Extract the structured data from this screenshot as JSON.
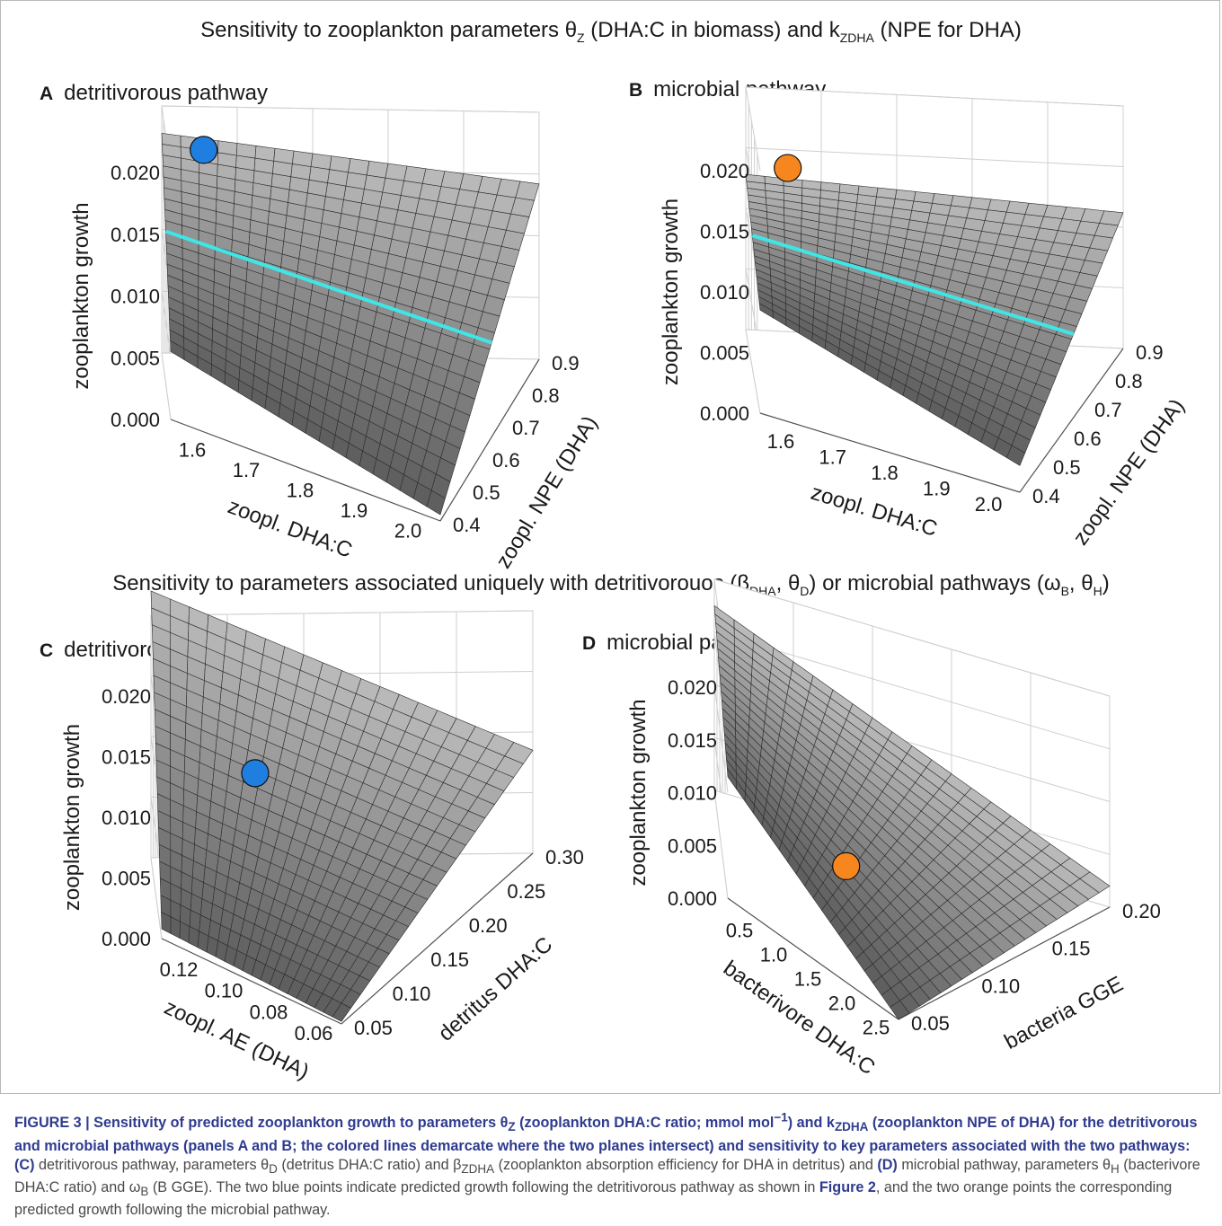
{
  "section_titles": {
    "top": "Sensitivity to zooplankton parameters θ",
    "top_sub1": "Z",
    "top_mid": " (DHA:C in biomass) and k",
    "top_sub2": "ZDHA",
    "top_end": " (NPE for DHA)",
    "bottom_a": "Sensitivity to parameters associated uniquely with detritivorouos (β",
    "bottom_sub1": "DHA",
    "bottom_b": ", θ",
    "bottom_sub2": "D",
    "bottom_c": ") or microbial pathways (ω",
    "bottom_sub3": "B",
    "bottom_d": ", θ",
    "bottom_sub4": "H",
    "bottom_e": ")"
  },
  "colors": {
    "surface": "#7a7a7a",
    "surface_light": "#bdbdbd",
    "mesh": "#2b2b2b",
    "grid": "#cfcfcf",
    "blue_point": "#1f7fe0",
    "orange_point": "#f7861e",
    "cyan_line": "#3fe6e6"
  },
  "chart_data": [
    {
      "panel": "A",
      "title": "detritivorous pathway",
      "type": "surface3d",
      "xlabel": "zoopl. DHA:C",
      "ylabel": "zoopl. NPE (DHA)",
      "zlabel": "zooplankton growth",
      "x_ticks": [
        "1.6",
        "1.7",
        "1.8",
        "1.9",
        "2.0"
      ],
      "y_ticks": [
        "0.4",
        "0.5",
        "0.6",
        "0.7",
        "0.8",
        "0.9"
      ],
      "z_ticks": [
        "0.000",
        "0.005",
        "0.010",
        "0.015",
        "0.020"
      ],
      "xlim": [
        1.55,
        2.0
      ],
      "ylim": [
        0.4,
        0.9
      ],
      "zlim": [
        0,
        0.02
      ],
      "surface_corners": {
        "x_min_y_min": 0.0055,
        "x_max_y_min": 0.0005,
        "x_min_y_max": 0.0178,
        "x_max_y_max": 0.0142
      },
      "point": {
        "color": "blue",
        "x": 1.6,
        "y": 0.9,
        "z": 0.0165
      },
      "intersection_line": true
    },
    {
      "panel": "B",
      "title": "microbial pathway",
      "type": "surface3d",
      "xlabel": "zoopl. DHA:C",
      "ylabel": "zoopl. NPE (DHA)",
      "zlabel": "zooplankton growth",
      "x_ticks": [
        "1.6",
        "1.7",
        "1.8",
        "1.9",
        "2.0"
      ],
      "y_ticks": [
        "0.4",
        "0.5",
        "0.6",
        "0.7",
        "0.8",
        "0.9"
      ],
      "z_ticks": [
        "0.000",
        "0.005",
        "0.010",
        "0.015",
        "0.020"
      ],
      "xlim": [
        1.55,
        2.0
      ],
      "ylim": [
        0.4,
        0.9
      ],
      "zlim": [
        0,
        0.02
      ],
      "surface_corners": {
        "x_min_y_min": 0.0085,
        "x_max_y_min": 0.0022,
        "x_min_y_max": 0.0128,
        "x_max_y_max": 0.0112
      },
      "point": {
        "color": "orange",
        "x": 1.6,
        "y": 0.9,
        "z": 0.0135
      },
      "intersection_line": true
    },
    {
      "panel": "C",
      "title": "detritivorous pathway",
      "type": "surface3d",
      "xlabel": "zoopl. AE (DHA)",
      "ylabel": "detritus DHA:C",
      "zlabel": "zooplankton growth",
      "x_ticks": [
        "0.12",
        "0.10",
        "0.08",
        "0.06"
      ],
      "y_ticks": [
        "0.05",
        "0.10",
        "0.15",
        "0.20",
        "0.25",
        "0.30"
      ],
      "z_ticks": [
        "0.000",
        "0.005",
        "0.010",
        "0.015",
        "0.020"
      ],
      "xlim": [
        0.13,
        0.05
      ],
      "ylim": [
        0.05,
        0.3
      ],
      "zlim": [
        0,
        0.02
      ],
      "surface_corners": {
        "x_max_y_min": 0.0008,
        "x_min_y_min": 0.0002,
        "x_max_y_max": 0.022,
        "x_min_y_max": 0.0085
      },
      "point": {
        "color": "blue",
        "x": 0.1,
        "y": 0.15,
        "z": 0.0125
      }
    },
    {
      "panel": "D",
      "title": "microbial pathway",
      "type": "surface3d",
      "xlabel": "bacterivore DHA:C",
      "ylabel": "bacteria GGE",
      "zlabel": "zooplankton growth",
      "x_ticks": [
        "0.5",
        "1.0",
        "1.5",
        "2.0",
        "2.5"
      ],
      "y_ticks": [
        "0.05",
        "0.10",
        "0.15",
        "0.20"
      ],
      "z_ticks": [
        "0.000",
        "0.005",
        "0.010",
        "0.015",
        "0.020"
      ],
      "xlim": [
        0.5,
        2.5
      ],
      "ylim": [
        0.05,
        0.2
      ],
      "zlim": [
        0,
        0.02
      ],
      "surface_corners": {
        "x_min_y_max": 0.0115,
        "x_min_y_min": 0.0,
        "x_max_y_max": 0.0175,
        "x_max_y_min": 0.002
      },
      "point": {
        "color": "orange",
        "x": 1.5,
        "y": 0.1,
        "z": 0.0053
      }
    }
  ],
  "caption": {
    "lead": "FIGURE 3 | Sensitivity of predicted zooplankton growth to parameters θ",
    "lead_sub1": "Z",
    "lead_b": " (zooplankton DHA:C ratio; mmol mol",
    "lead_sup": "−1",
    "lead_c": ") and k",
    "lead_sub2": "ZDHA",
    "lead_d": " (zooplankton NPE of DHA) for the detritivorous and microbial pathways (panels A and B; the colored lines demarcate where the two planes intersect) and sensitivity to key parameters associated with the two pathways:",
    "c_label": "(C)",
    "c_text_a": " detritivorous pathway, parameters θ",
    "c_sub1": "D",
    "c_text_b": " (detritus DHA:C ratio) and β",
    "c_sub2": "ZDHA",
    "c_text_c": " (zooplankton absorption efficiency for DHA in detritus) and ",
    "d_label": "(D)",
    "d_text_a": " microbial pathway, parameters θ",
    "d_sub1": "H",
    "d_text_b": " (bacterivore DHA:C ratio) and ω",
    "d_sub2": "B",
    "d_text_c": " (B GGE). The two blue points indicate predicted growth following the detritivorous pathway as shown in ",
    "fig_ref": "Figure 2",
    "d_text_d": ", and the two orange points the corresponding predicted growth following the microbial pathway."
  }
}
